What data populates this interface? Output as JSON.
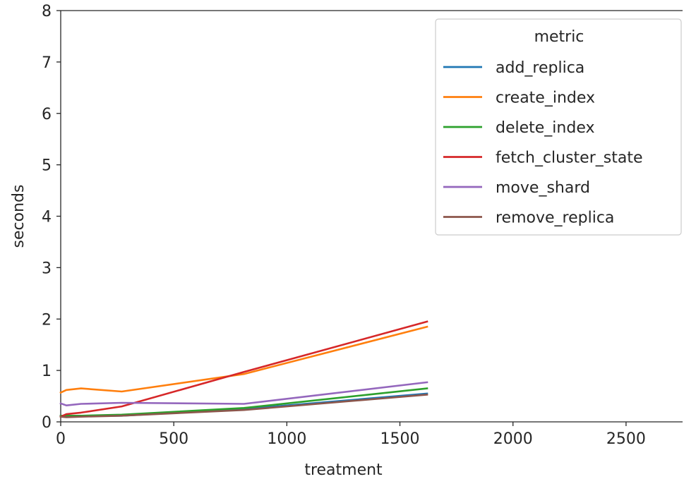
{
  "chart_data": {
    "type": "line",
    "title": "",
    "xlabel": "treatment",
    "ylabel": "seconds",
    "xlim": [
      0,
      2750
    ],
    "ylim": [
      0,
      8
    ],
    "xticks": [
      0,
      500,
      1000,
      1500,
      2000,
      2500
    ],
    "yticks": [
      0,
      1,
      2,
      3,
      4,
      5,
      6,
      7,
      8
    ],
    "grid": false,
    "legend": {
      "title": "metric",
      "placement": "top-right"
    },
    "series": [
      {
        "name": "add_replica",
        "color": "#1f77b4",
        "x": [
          0,
          25,
          90,
          270,
          810,
          1620
        ],
        "y": [
          0.12,
          0.11,
          0.11,
          0.12,
          0.25,
          0.55
        ]
      },
      {
        "name": "create_index",
        "color": "#ff7f0e",
        "x": [
          0,
          25,
          90,
          270,
          810,
          1620
        ],
        "y": [
          0.57,
          0.62,
          0.65,
          0.59,
          0.93,
          1.85
        ]
      },
      {
        "name": "delete_index",
        "color": "#2ca02c",
        "x": [
          0,
          25,
          90,
          270,
          810,
          1620
        ],
        "y": [
          0.12,
          0.12,
          0.12,
          0.14,
          0.27,
          0.65
        ]
      },
      {
        "name": "fetch_cluster_state",
        "color": "#d62728",
        "x": [
          0,
          25,
          90,
          270,
          810,
          1620
        ],
        "y": [
          0.1,
          0.15,
          0.18,
          0.3,
          0.97,
          1.95
        ]
      },
      {
        "name": "move_shard",
        "color": "#9467bd",
        "x": [
          0,
          25,
          90,
          270,
          810,
          1620
        ],
        "y": [
          0.36,
          0.32,
          0.35,
          0.37,
          0.35,
          0.77
        ]
      },
      {
        "name": "remove_replica",
        "color": "#8c564b",
        "x": [
          0,
          25,
          90,
          270,
          810,
          1620
        ],
        "y": [
          0.1,
          0.09,
          0.1,
          0.12,
          0.23,
          0.53
        ]
      }
    ]
  }
}
